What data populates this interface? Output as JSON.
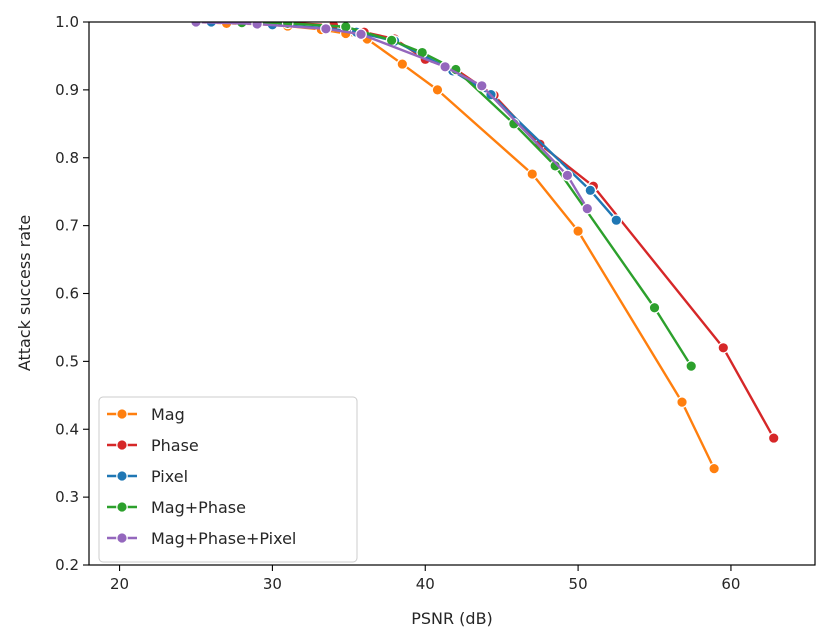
{
  "chart_data": {
    "type": "line",
    "title": "",
    "xlabel": "PSNR (dB)",
    "ylabel": "Attack success rate",
    "xlim": [
      18,
      65.5
    ],
    "ylim": [
      0.2,
      1.0
    ],
    "xticks": [
      20,
      30,
      40,
      50,
      60
    ],
    "yticks": [
      0.2,
      0.3,
      0.4,
      0.5,
      0.6,
      0.7,
      0.8,
      0.9,
      1.0
    ],
    "xtick_labels": [
      "20",
      "30",
      "40",
      "50",
      "60"
    ],
    "ytick_labels": [
      "0.2",
      "0.3",
      "0.4",
      "0.5",
      "0.6",
      "0.7",
      "0.8",
      "0.9",
      "1.0"
    ],
    "legend_position": "lower-left",
    "grid": false,
    "series": [
      {
        "name": "Mag",
        "color": "#ff7f0e",
        "x": [
          25.0,
          27.0,
          29.0,
          31.0,
          33.2,
          34.8,
          36.2,
          38.5,
          40.8,
          47.0,
          50.0,
          56.8,
          58.9
        ],
        "y": [
          1.0,
          0.998,
          0.997,
          0.994,
          0.989,
          0.983,
          0.975,
          0.938,
          0.9,
          0.776,
          0.692,
          0.44,
          0.342
        ]
      },
      {
        "name": "Phase",
        "color": "#d62728",
        "x": [
          25.0,
          28.0,
          31.0,
          34.0,
          36.0,
          38.0,
          40.0,
          42.0,
          44.5,
          47.5,
          51.0,
          59.5,
          62.8
        ],
        "y": [
          1.0,
          1.0,
          0.999,
          0.995,
          0.985,
          0.975,
          0.945,
          0.93,
          0.892,
          0.82,
          0.758,
          0.52,
          0.387
        ]
      },
      {
        "name": "Pixel",
        "color": "#1f77b4",
        "x": [
          25.0,
          26.0,
          28.0,
          30.0,
          33.5,
          35.5,
          38.0,
          41.8,
          44.3,
          50.8,
          52.5
        ],
        "y": [
          1.0,
          1.0,
          0.999,
          0.996,
          0.991,
          0.985,
          0.972,
          0.928,
          0.893,
          0.752,
          0.708
        ]
      },
      {
        "name": "Mag+Phase",
        "color": "#2ca02c",
        "x": [
          25.0,
          28.0,
          31.0,
          34.8,
          37.8,
          39.8,
          42.0,
          45.8,
          48.5,
          55.0,
          57.4
        ],
        "y": [
          1.0,
          0.999,
          0.998,
          0.993,
          0.973,
          0.955,
          0.93,
          0.85,
          0.788,
          0.579,
          0.493
        ]
      },
      {
        "name": "Mag+Phase+Pixel",
        "color": "#9467bd",
        "x": [
          25.0,
          29.0,
          33.5,
          35.8,
          41.3,
          43.7,
          49.3,
          50.6
        ],
        "y": [
          1.0,
          0.997,
          0.99,
          0.982,
          0.934,
          0.906,
          0.774,
          0.725
        ]
      }
    ]
  }
}
